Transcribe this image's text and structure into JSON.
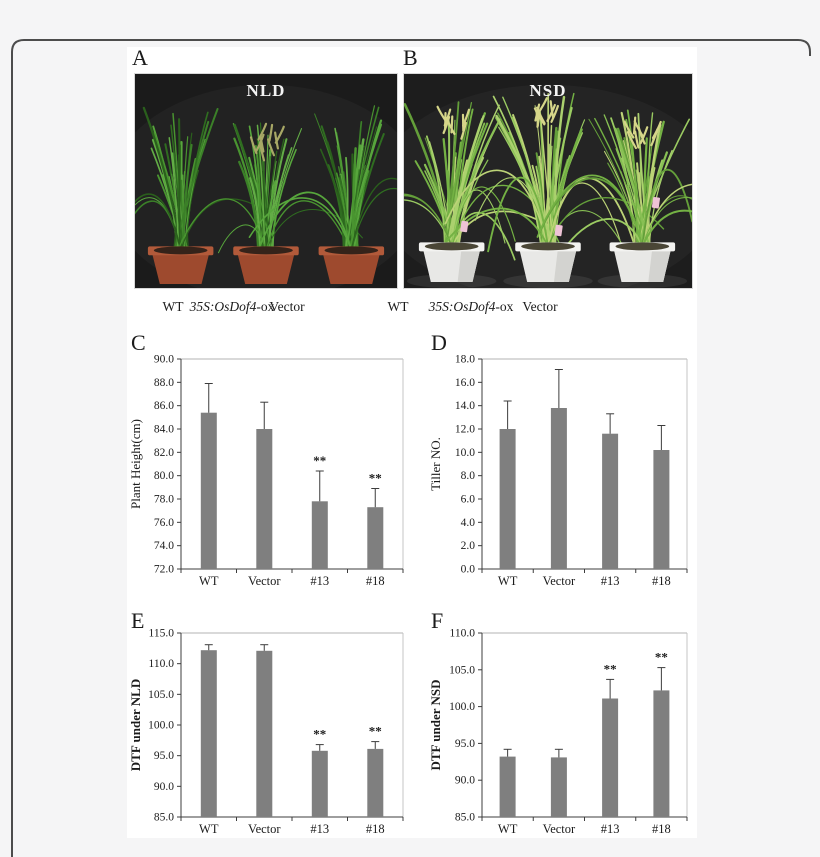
{
  "page": {
    "background": "#f5f5f6",
    "frame_border_color": "#4c4c4c",
    "figure_background": "#ffffff"
  },
  "figure": {
    "photo_panels": [
      {
        "label": "A",
        "overlay_title": "NLD",
        "captions": [
          {
            "plain": "WT"
          },
          {
            "italic": "35S:OsDof4",
            "plain": "-ox"
          },
          {
            "plain": "Vector"
          }
        ],
        "photo_background": "#1b1b1b",
        "pot_color": "#9e4a2e",
        "foliage_tone": "dark-green"
      },
      {
        "label": "B",
        "overlay_title": "NSD",
        "captions": [
          {
            "plain": "WT"
          },
          {
            "italic": "35S:OsDof4",
            "plain": "-ox"
          },
          {
            "plain": "Vector"
          }
        ],
        "photo_background": "#1d1d1d",
        "pot_color": "#e8e8e6",
        "foliage_tone": "yellow-green"
      }
    ]
  },
  "chart_data": [
    {
      "panel": "C",
      "type": "bar",
      "categories": [
        "WT",
        "Vector",
        "#13",
        "#18"
      ],
      "values": [
        85.4,
        84.0,
        77.8,
        77.3
      ],
      "errors": [
        2.5,
        2.3,
        2.6,
        1.6
      ],
      "significance": [
        "",
        "",
        "**",
        "**"
      ],
      "ylabel": "Plant Height(cm)",
      "ylim": [
        72,
        90
      ],
      "ytick_step": 2,
      "ytick_format_decimals": 1,
      "grid": false,
      "bar_color": "#7f7f7f",
      "error_bar_color": "#3c3c3c"
    },
    {
      "panel": "D",
      "type": "bar",
      "categories": [
        "WT",
        "Vector",
        "#13",
        "#18"
      ],
      "values": [
        12.0,
        13.8,
        11.6,
        10.2
      ],
      "errors": [
        2.4,
        3.3,
        1.7,
        2.1
      ],
      "significance": [
        "",
        "",
        "",
        ""
      ],
      "ylabel": "Tiller  NO.",
      "ylim": [
        0,
        18
      ],
      "ytick_step": 2,
      "ytick_format_decimals": 1,
      "grid": false,
      "bar_color": "#7f7f7f",
      "error_bar_color": "#3c3c3c"
    },
    {
      "panel": "E",
      "type": "bar",
      "categories": [
        "WT",
        "Vector",
        "#13",
        "#18"
      ],
      "values": [
        112.2,
        112.1,
        95.8,
        96.1
      ],
      "errors": [
        0.9,
        1.0,
        1.0,
        1.2
      ],
      "significance": [
        "",
        "",
        "**",
        "**"
      ],
      "ylabel": "DTF under NLD",
      "ylim": [
        85,
        115
      ],
      "ytick_step": 5,
      "ytick_format_decimals": 1,
      "grid": false,
      "bar_color": "#7f7f7f",
      "error_bar_color": "#3c3c3c"
    },
    {
      "panel": "F",
      "type": "bar",
      "categories": [
        "WT",
        "Vector",
        "#13",
        "#18"
      ],
      "values": [
        93.2,
        93.1,
        101.1,
        102.2
      ],
      "errors": [
        1.0,
        1.1,
        2.6,
        3.1
      ],
      "significance": [
        "",
        "",
        "**",
        "**"
      ],
      "ylabel": "DTF under NSD",
      "ylim": [
        85,
        110
      ],
      "ytick_step": 5,
      "ytick_format_decimals": 1,
      "grid": false,
      "bar_color": "#7f7f7f",
      "error_bar_color": "#3c3c3c"
    }
  ]
}
